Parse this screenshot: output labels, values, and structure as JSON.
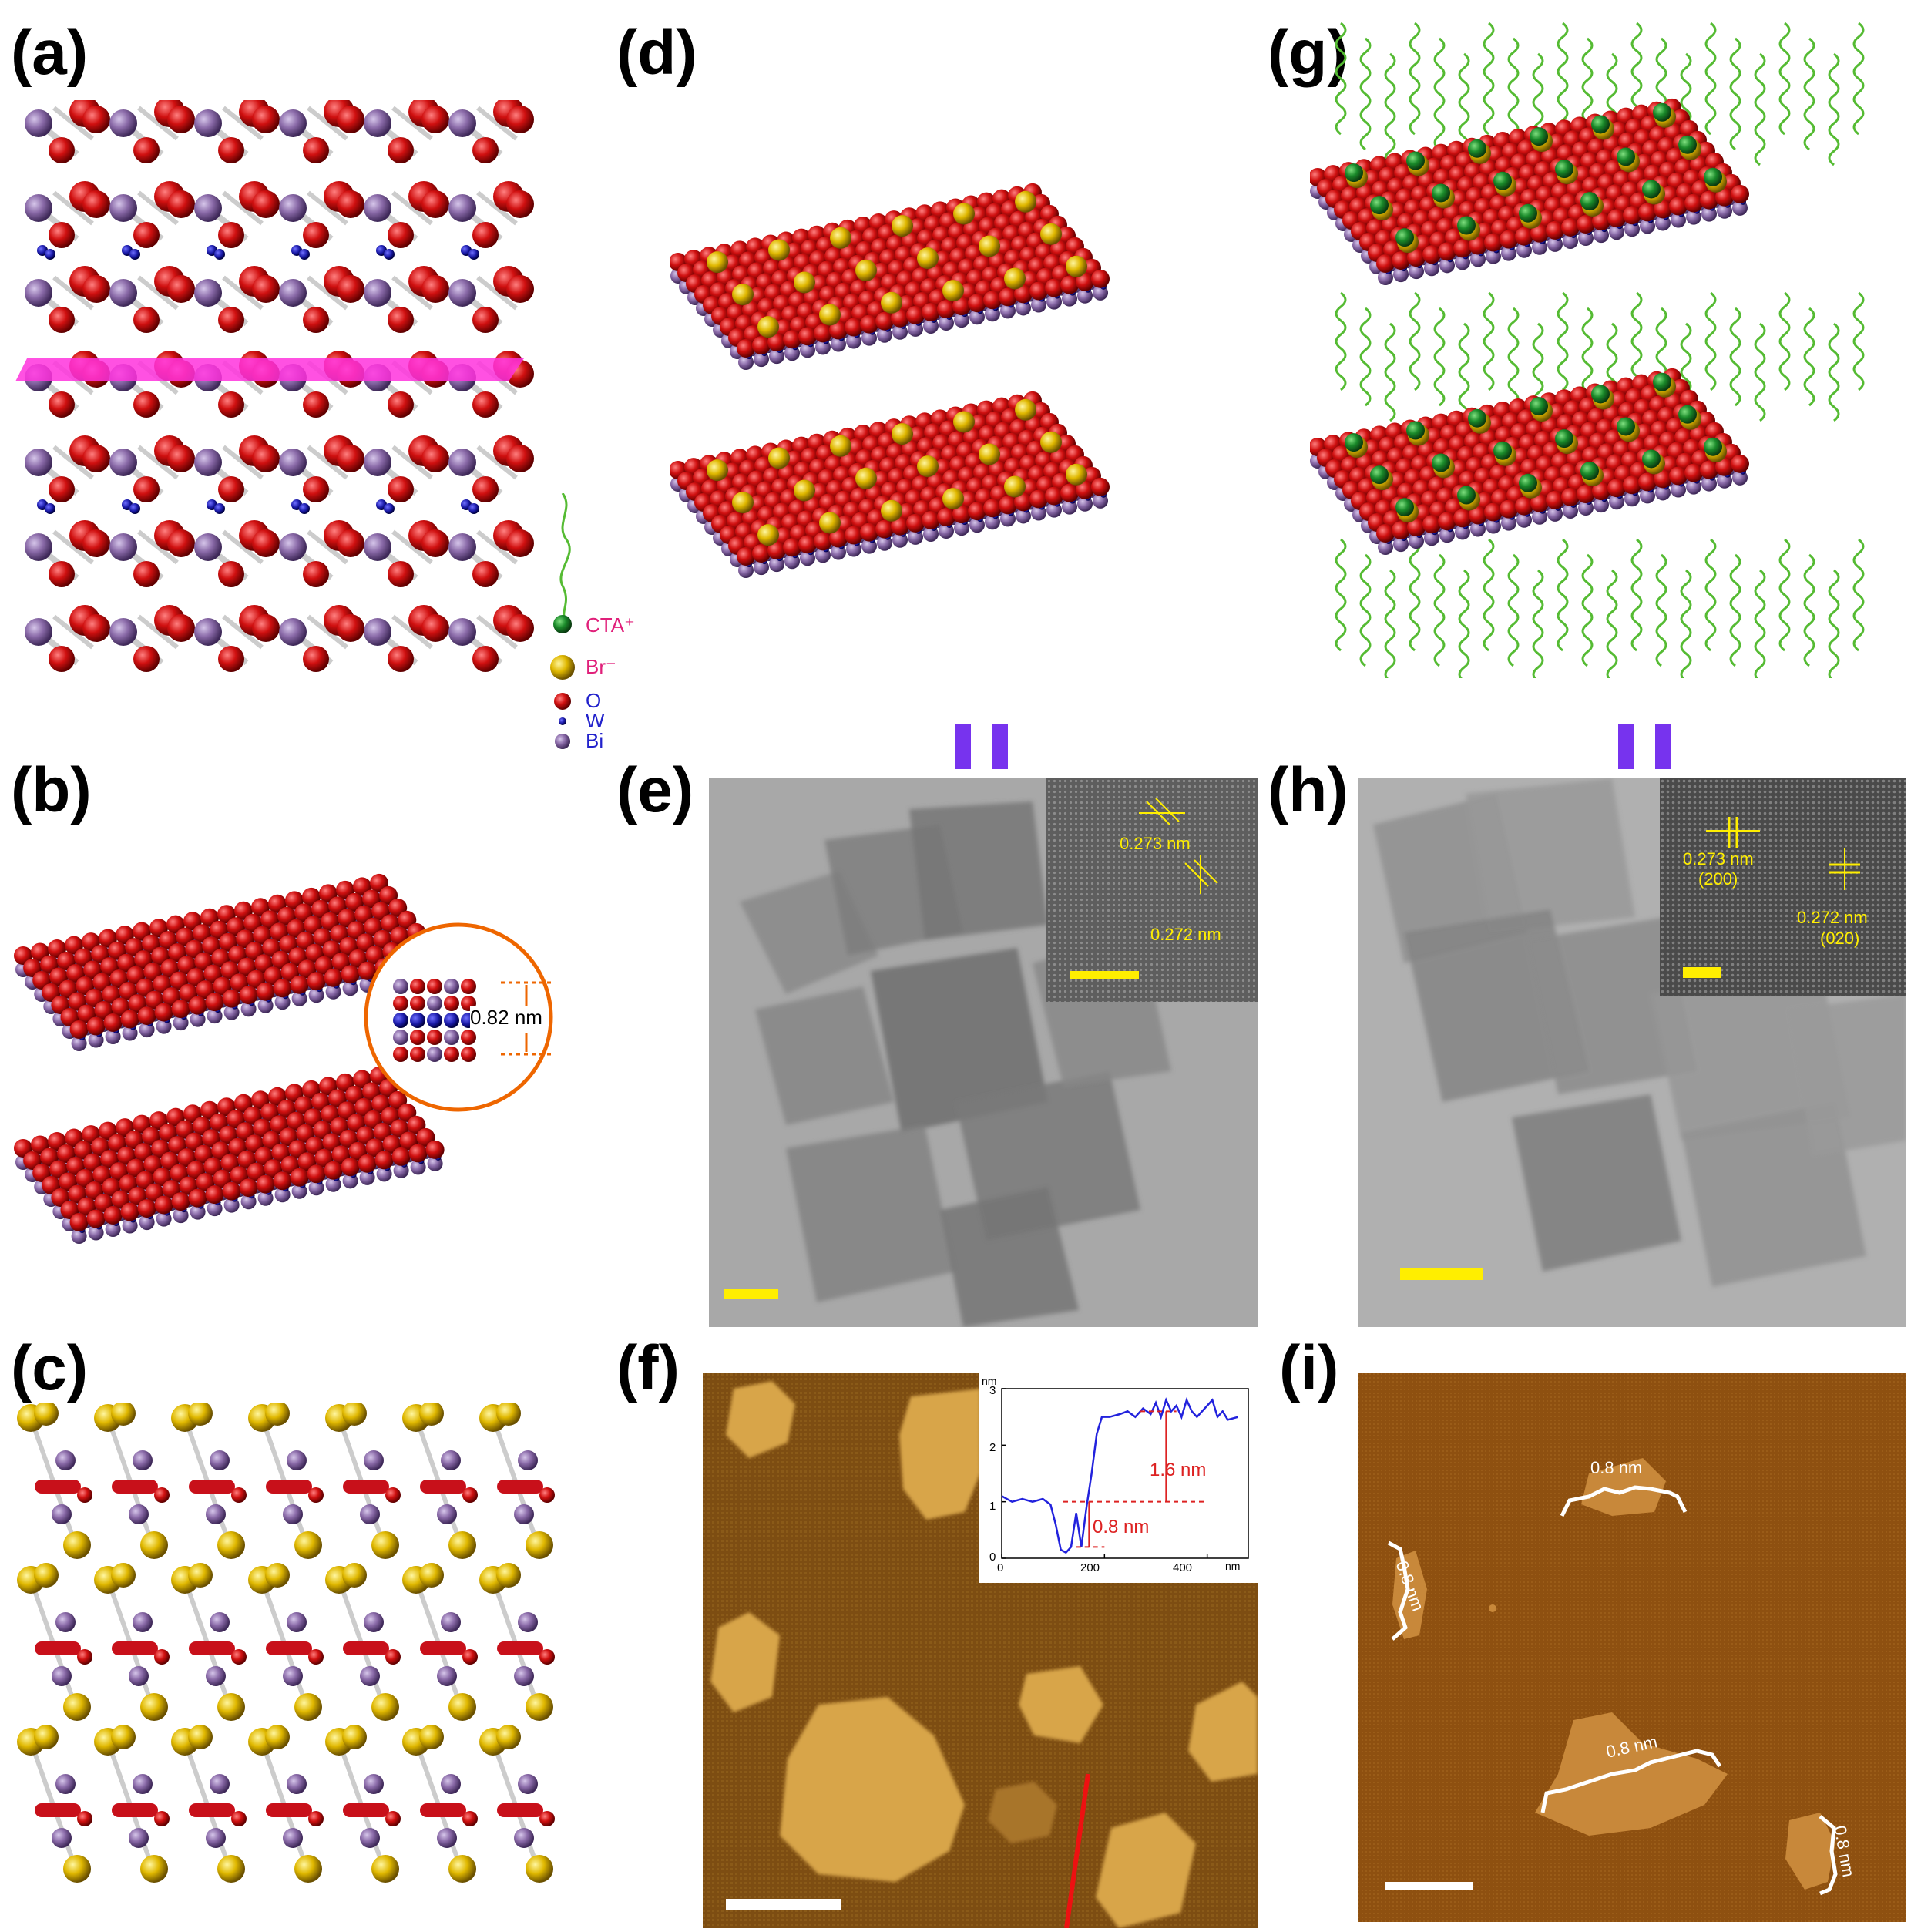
{
  "panels": {
    "a": "(a)",
    "b": "(b)",
    "c": "(c)",
    "d": "(d)",
    "e": "(e)",
    "f": "(f)",
    "g": "(g)",
    "h": "(h)",
    "i": "(i)"
  },
  "legend": {
    "cta": "CTA⁺",
    "br": "Br⁻",
    "o": "O",
    "w": "W",
    "bi": "Bi"
  },
  "b_spacing": "0.82 nm",
  "e_inset": {
    "d1": "0.273 nm",
    "d2": "0.272 nm"
  },
  "h_inset": {
    "d1": "0.273 nm",
    "h1": "(200)",
    "d2": "0.272 nm",
    "h2": "(020)"
  },
  "f_inset": {
    "unit_y": "nm",
    "unit_x": "nm",
    "yticks": [
      "0",
      "1",
      "2",
      "3"
    ],
    "xticks": [
      "0",
      "200",
      "400"
    ],
    "step1": "1.6 nm",
    "step2": "0.8 nm"
  },
  "i_labels": {
    "l1": "0.8 nm",
    "l2": "0.8 nm",
    "l3": "0.8 nm",
    "l4": "0.8 nm"
  },
  "colors": {
    "oxygen": "#c8101a",
    "tungsten": "#1a1aa8",
    "bismuth": "#8a6aa8",
    "bromide": "#e0b800",
    "cta": "#1a8a2a",
    "plane": "#ff33dd",
    "afm_dark": "#7a4b12",
    "afm_light": "#d9a545",
    "scale_yellow": "#ffee00",
    "marker_purple": "#7733ee"
  }
}
